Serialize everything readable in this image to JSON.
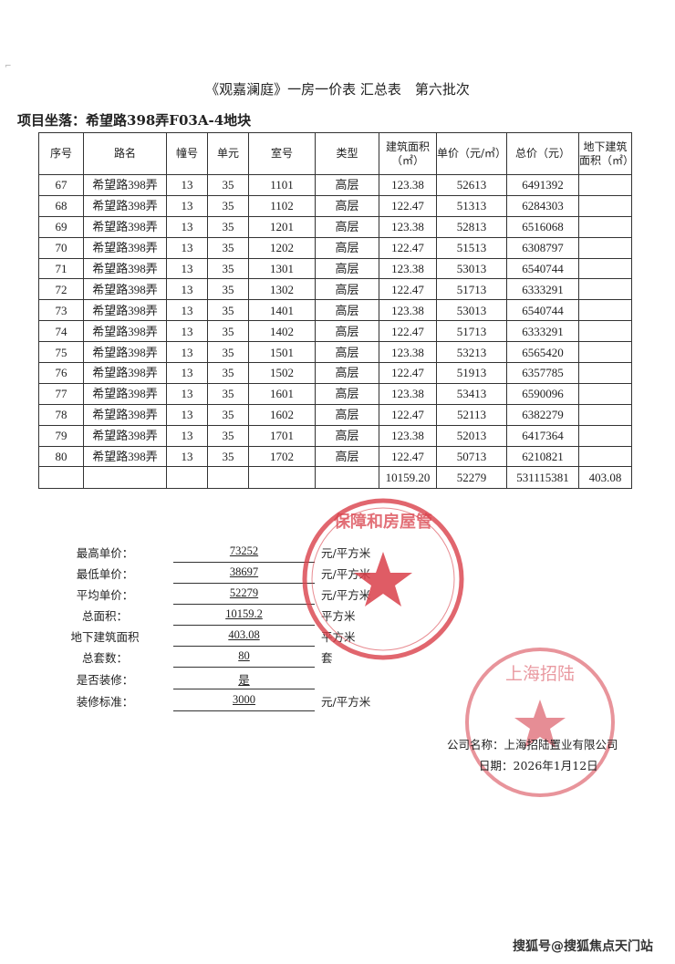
{
  "document": {
    "title": "《观嘉澜庭》一房一价表 汇总表　第六批次",
    "location": "项目坐落：希望路398弄F03A-4地块"
  },
  "table": {
    "headers": [
      "序号",
      "路名",
      "幢号",
      "单元",
      "室号",
      "类型",
      "建筑面积（㎡）",
      "单价（元/㎡）",
      "总价（元）",
      "地下建筑面积（㎡）"
    ],
    "rows": [
      [
        "67",
        "希望路398弄",
        "13",
        "35",
        "1101",
        "高层",
        "123.38",
        "52613",
        "6491392",
        ""
      ],
      [
        "68",
        "希望路398弄",
        "13",
        "35",
        "1102",
        "高层",
        "122.47",
        "51313",
        "6284303",
        ""
      ],
      [
        "69",
        "希望路398弄",
        "13",
        "35",
        "1201",
        "高层",
        "123.38",
        "52813",
        "6516068",
        ""
      ],
      [
        "70",
        "希望路398弄",
        "13",
        "35",
        "1202",
        "高层",
        "122.47",
        "51513",
        "6308797",
        ""
      ],
      [
        "71",
        "希望路398弄",
        "13",
        "35",
        "1301",
        "高层",
        "123.38",
        "53013",
        "6540744",
        ""
      ],
      [
        "72",
        "希望路398弄",
        "13",
        "35",
        "1302",
        "高层",
        "122.47",
        "51713",
        "6333291",
        ""
      ],
      [
        "73",
        "希望路398弄",
        "13",
        "35",
        "1401",
        "高层",
        "123.38",
        "53013",
        "6540744",
        ""
      ],
      [
        "74",
        "希望路398弄",
        "13",
        "35",
        "1402",
        "高层",
        "122.47",
        "51713",
        "6333291",
        ""
      ],
      [
        "75",
        "希望路398弄",
        "13",
        "35",
        "1501",
        "高层",
        "123.38",
        "53213",
        "6565420",
        ""
      ],
      [
        "76",
        "希望路398弄",
        "13",
        "35",
        "1502",
        "高层",
        "122.47",
        "51913",
        "6357785",
        ""
      ],
      [
        "77",
        "希望路398弄",
        "13",
        "35",
        "1601",
        "高层",
        "123.38",
        "53413",
        "6590096",
        ""
      ],
      [
        "78",
        "希望路398弄",
        "13",
        "35",
        "1602",
        "高层",
        "122.47",
        "52113",
        "6382279",
        ""
      ],
      [
        "79",
        "希望路398弄",
        "13",
        "35",
        "1701",
        "高层",
        "123.38",
        "52013",
        "6417364",
        ""
      ],
      [
        "80",
        "希望路398弄",
        "13",
        "35",
        "1702",
        "高层",
        "122.47",
        "50713",
        "6210821",
        ""
      ]
    ],
    "total": [
      "",
      "",
      "",
      "",
      "",
      "",
      "10159.20",
      "52279",
      "531115381",
      "403.08"
    ]
  },
  "summary": [
    {
      "label": "最高单价：",
      "value": "73252",
      "unit": "元/平方米"
    },
    {
      "label": "最低单价：",
      "value": "38697",
      "unit": "元/平方米"
    },
    {
      "label": "平均单价：",
      "value": "52279",
      "unit": "元/平方米"
    },
    {
      "label": "总面积：",
      "value": "10159.2",
      "unit": "平方米"
    },
    {
      "label": "地下建筑面积",
      "value": "403.08",
      "unit": "平方米"
    },
    {
      "label": "总套数：",
      "value": "80",
      "unit": "套"
    },
    {
      "label": "是否装修：",
      "value": "是",
      "unit": ""
    },
    {
      "label": "装修标准：",
      "value": "3000",
      "unit": "元/平方米"
    }
  ],
  "footer": {
    "company": "公司名称：上海招陆置业有限公司",
    "date": "日期：2026年1月12日"
  },
  "stamps": {
    "color": "#d9404a",
    "government_stamp_text": "保障和房屋管理局",
    "company_stamp_text": "上海招陆置"
  },
  "watermark": "搜狐号@搜狐焦点天门站"
}
